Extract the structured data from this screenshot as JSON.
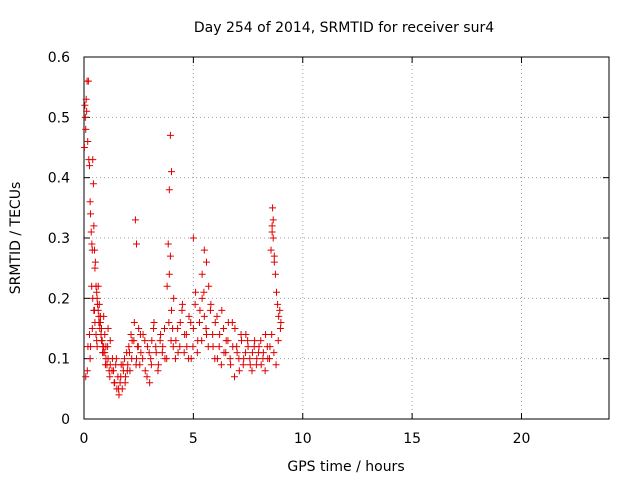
{
  "chart_data": {
    "type": "scatter",
    "title": "Day 254 of 2014, SRMTID for receiver sur4",
    "xlabel": "GPS time / hours",
    "ylabel": "SRMTID / TECUs",
    "xlim": [
      0,
      24
    ],
    "ylim": [
      0,
      0.6
    ],
    "xticks": [
      0,
      5,
      10,
      15,
      20
    ],
    "xtick_labels": [
      "0",
      "5",
      "10",
      "15",
      "20"
    ],
    "yticks": [
      0,
      0.1,
      0.2,
      0.3,
      0.4,
      0.5,
      0.6
    ],
    "ytick_labels": [
      "0",
      "0.1",
      "0.2",
      "0.3",
      "0.4",
      "0.5",
      "0.6"
    ],
    "grid": true,
    "marker": "+",
    "color": "#e00000",
    "series": [
      {
        "name": "sur4",
        "x": [
          0.02,
          0.04,
          0.06,
          0.08,
          0.1,
          0.12,
          0.14,
          0.17,
          0.2,
          0.22,
          0.25,
          0.28,
          0.3,
          0.33,
          0.36,
          0.38,
          0.4,
          0.43,
          0.45,
          0.48,
          0.5,
          0.52,
          0.55,
          0.58,
          0.6,
          0.62,
          0.65,
          0.68,
          0.7,
          0.72,
          0.75,
          0.78,
          0.8,
          0.83,
          0.86,
          0.9,
          0.95,
          1.0,
          1.05,
          1.1,
          1.15,
          1.2,
          0.15,
          0.25,
          0.3,
          0.35,
          0.4,
          0.45,
          0.5,
          0.55,
          0.6,
          0.65,
          0.7,
          0.75,
          0.8,
          0.85,
          0.9,
          0.95,
          1.0,
          1.1,
          1.2,
          1.3,
          1.35,
          1.4,
          1.45,
          1.5,
          1.55,
          1.6,
          1.65,
          1.7,
          1.75,
          1.8,
          1.85,
          1.9,
          1.95,
          2.0,
          2.05,
          2.1,
          2.15,
          2.2,
          2.3,
          2.4,
          2.45,
          2.5,
          2.55,
          2.6,
          2.7,
          2.8,
          2.9,
          3.0,
          3.05,
          3.1,
          3.2,
          3.3,
          3.4,
          3.5,
          3.6,
          3.7,
          3.8,
          3.85,
          3.9,
          3.95,
          4.0,
          4.05,
          4.1,
          4.2,
          4.3,
          4.4,
          4.5,
          4.6,
          4.7,
          4.8,
          4.9,
          5.0,
          5.1,
          5.2,
          5.3,
          5.4,
          5.5,
          5.6,
          5.7,
          5.8,
          5.9,
          6.0,
          6.1,
          6.2,
          6.3,
          6.4,
          6.5,
          6.6,
          6.7,
          6.8,
          6.9,
          7.0,
          7.1,
          7.2,
          7.3,
          7.4,
          7.5,
          7.6,
          7.7,
          7.8,
          7.9,
          8.0,
          8.1,
          8.2,
          8.3,
          8.4,
          8.5,
          8.55,
          8.6,
          8.65,
          8.7,
          8.75,
          8.8,
          8.85,
          8.9,
          8.95,
          9.0,
          0.08,
          0.18,
          0.28,
          0.38,
          0.48,
          0.58,
          0.68,
          0.78,
          0.88,
          0.98,
          1.08,
          1.18,
          1.28,
          1.38,
          1.48,
          1.58,
          1.68,
          1.78,
          1.88,
          1.98,
          2.08,
          2.18,
          2.28,
          2.38,
          2.48,
          2.58,
          2.68,
          2.78,
          2.88,
          2.98,
          3.08,
          3.18,
          3.28,
          3.38,
          3.48,
          3.58,
          3.68,
          3.78,
          3.88,
          3.98,
          4.08,
          4.18,
          4.28,
          4.38,
          4.48,
          4.58,
          4.68,
          4.78,
          4.88,
          4.98,
          5.08,
          5.18,
          5.28,
          5.38,
          5.48,
          5.58,
          5.68,
          5.78,
          5.88,
          5.98,
          6.08,
          6.18,
          6.28,
          6.38,
          6.48,
          6.58,
          6.68,
          6.78,
          6.88,
          6.98,
          7.08,
          7.18,
          7.28,
          7.38,
          7.48,
          7.58,
          7.68,
          7.78,
          7.88,
          7.98,
          8.08,
          8.18,
          8.28,
          8.38,
          8.48,
          8.58,
          8.68,
          8.78,
          8.88,
          8.98,
          2.35,
          2.4,
          3.95,
          4.0,
          3.9,
          5.0,
          5.5,
          5.4,
          5.6,
          8.6,
          8.65,
          8.7,
          8.62
        ],
        "y": [
          0.45,
          0.52,
          0.5,
          0.48,
          0.53,
          0.51,
          0.56,
          0.46,
          0.56,
          0.43,
          0.42,
          0.36,
          0.34,
          0.31,
          0.29,
          0.28,
          0.43,
          0.39,
          0.32,
          0.28,
          0.25,
          0.26,
          0.22,
          0.21,
          0.2,
          0.19,
          0.18,
          0.17,
          0.16,
          0.15,
          0.17,
          0.14,
          0.15,
          0.13,
          0.12,
          0.12,
          0.11,
          0.1,
          0.09,
          0.1,
          0.08,
          0.09,
          0.08,
          0.14,
          0.12,
          0.22,
          0.2,
          0.18,
          0.16,
          0.14,
          0.12,
          0.22,
          0.19,
          0.16,
          0.13,
          0.11,
          0.17,
          0.14,
          0.12,
          0.15,
          0.13,
          0.1,
          0.08,
          0.06,
          0.09,
          0.05,
          0.07,
          0.04,
          0.06,
          0.09,
          0.05,
          0.08,
          0.1,
          0.07,
          0.11,
          0.09,
          0.12,
          0.08,
          0.14,
          0.13,
          0.16,
          0.1,
          0.12,
          0.15,
          0.09,
          0.11,
          0.14,
          0.08,
          0.12,
          0.06,
          0.1,
          0.13,
          0.16,
          0.11,
          0.09,
          0.14,
          0.12,
          0.1,
          0.22,
          0.29,
          0.24,
          0.27,
          0.18,
          0.15,
          0.2,
          0.13,
          0.11,
          0.16,
          0.19,
          0.14,
          0.12,
          0.17,
          0.1,
          0.15,
          0.21,
          0.13,
          0.18,
          0.2,
          0.17,
          0.14,
          0.22,
          0.19,
          0.12,
          0.16,
          0.1,
          0.14,
          0.18,
          0.11,
          0.13,
          0.16,
          0.09,
          0.12,
          0.15,
          0.11,
          0.08,
          0.13,
          0.1,
          0.14,
          0.12,
          0.09,
          0.11,
          0.13,
          0.1,
          0.12,
          0.09,
          0.11,
          0.14,
          0.1,
          0.12,
          0.28,
          0.32,
          0.3,
          0.26,
          0.24,
          0.21,
          0.19,
          0.17,
          0.18,
          0.16,
          0.07,
          0.12,
          0.1,
          0.15,
          0.18,
          0.13,
          0.16,
          0.14,
          0.11,
          0.09,
          0.12,
          0.07,
          0.08,
          0.06,
          0.1,
          0.05,
          0.07,
          0.09,
          0.06,
          0.08,
          0.11,
          0.1,
          0.13,
          0.09,
          0.12,
          0.14,
          0.1,
          0.13,
          0.07,
          0.11,
          0.09,
          0.15,
          0.12,
          0.08,
          0.13,
          0.11,
          0.15,
          0.1,
          0.16,
          0.13,
          0.12,
          0.1,
          0.15,
          0.12,
          0.18,
          0.11,
          0.14,
          0.1,
          0.16,
          0.12,
          0.19,
          0.11,
          0.16,
          0.13,
          0.21,
          0.15,
          0.12,
          0.18,
          0.14,
          0.1,
          0.17,
          0.12,
          0.09,
          0.15,
          0.11,
          0.13,
          0.1,
          0.16,
          0.07,
          0.12,
          0.1,
          0.14,
          0.09,
          0.11,
          0.13,
          0.1,
          0.08,
          0.12,
          0.09,
          0.11,
          0.13,
          0.1,
          0.08,
          0.12,
          0.1,
          0.14,
          0.11,
          0.09,
          0.13,
          0.15,
          0.33,
          0.29,
          0.47,
          0.41,
          0.38,
          0.3,
          0.28,
          0.24,
          0.26,
          0.31,
          0.33,
          0.27,
          0.35
        ]
      }
    ]
  }
}
